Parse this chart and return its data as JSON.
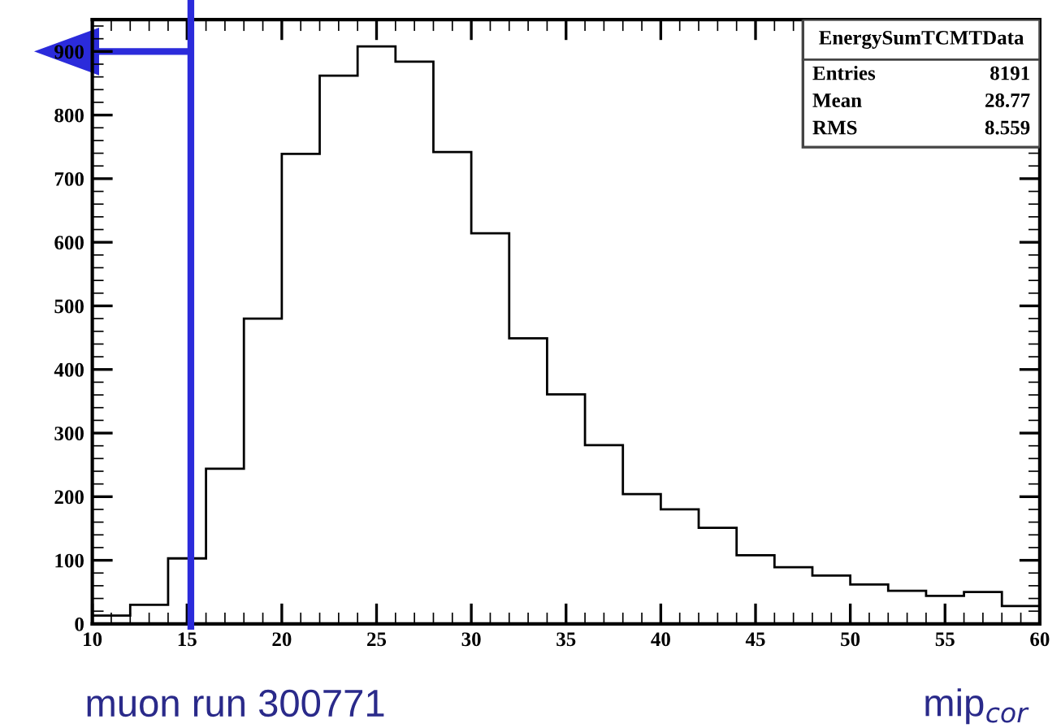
{
  "chart_data": {
    "type": "histogram",
    "title": "EnergySumTCMTData",
    "xlabel": "mip$_{cor}$",
    "bins": [
      10,
      12,
      14,
      16,
      18,
      20,
      22,
      24,
      26,
      28,
      30,
      32,
      34,
      36,
      38,
      40,
      42,
      44,
      46,
      48,
      50,
      52,
      54,
      56,
      58,
      60
    ],
    "values": [
      13,
      30,
      103,
      244,
      480,
      739,
      862,
      908,
      884,
      742,
      614,
      449,
      361,
      281,
      204,
      180,
      151,
      108,
      89,
      76,
      62,
      52,
      44,
      50,
      28
    ],
    "color": "#000000",
    "xlim": [
      10,
      60
    ],
    "xticks": [
      10,
      15,
      20,
      25,
      30,
      35,
      40,
      45,
      50,
      55,
      60
    ],
    "ylim": [
      0,
      950
    ],
    "yticks": [
      0,
      100,
      200,
      300,
      400,
      500,
      600,
      700,
      800,
      900
    ],
    "grid": false,
    "legend": false,
    "annotations": [
      "Entries",
      "8191",
      "Mean",
      "28.77",
      "RMS",
      "8.559",
      "muon run 300771"
    ],
    "ref_lines": [
      {
        "axis": "x",
        "value": 15.2,
        "color": "#2b2bdb"
      },
      {
        "axis": "y",
        "value": 900,
        "color": "#2b2bdb"
      }
    ]
  }
}
